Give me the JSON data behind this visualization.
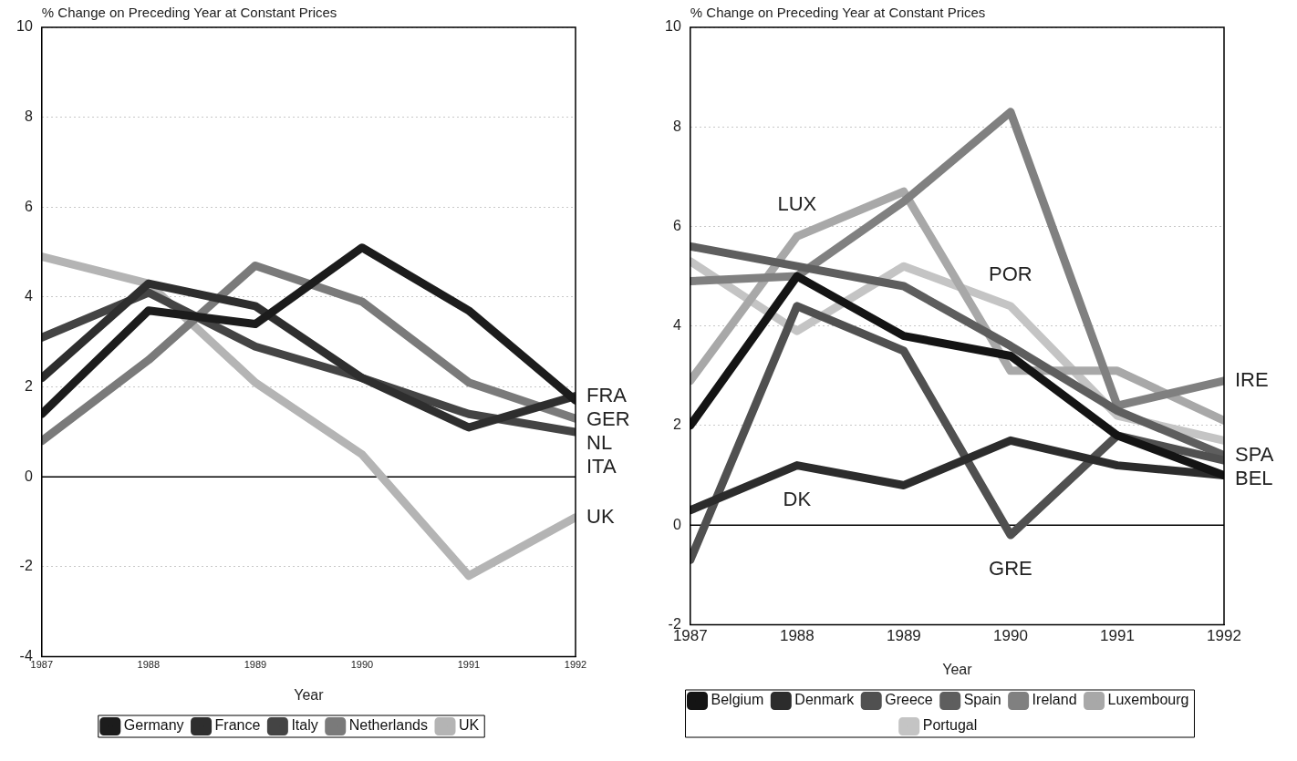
{
  "chart_data": [
    {
      "type": "line",
      "ylabel": "% Change on Preceding Year at Constant Prices",
      "xlabel": "Year",
      "x": [
        1987,
        1988,
        1989,
        1990,
        1991,
        1992
      ],
      "xlim": [
        1987,
        1992
      ],
      "xticks": [
        1987,
        1988,
        1989,
        1990,
        1991,
        1992
      ],
      "ylim": [
        -4,
        10
      ],
      "yticks": [
        -4,
        -2,
        0,
        2,
        4,
        6,
        8,
        10
      ],
      "grid": "y",
      "legend": "bottom",
      "marker": "none",
      "line_style": "solid",
      "ref_lines": [
        {
          "axis": "y",
          "value": 0,
          "color": "#000000"
        }
      ],
      "series": [
        {
          "name": "Germany",
          "color": "#1c1c1c",
          "values": [
            1.4,
            3.7,
            3.4,
            5.1,
            3.7,
            1.7
          ]
        },
        {
          "name": "France",
          "color": "#2e2e2e",
          "values": [
            2.2,
            4.3,
            3.8,
            2.2,
            1.1,
            1.8
          ]
        },
        {
          "name": "Italy",
          "color": "#444444",
          "values": [
            3.1,
            4.1,
            2.9,
            2.2,
            1.4,
            1.0
          ]
        },
        {
          "name": "Netherlands",
          "color": "#7a7a7a",
          "values": [
            0.8,
            2.6,
            4.7,
            3.9,
            2.1,
            1.3
          ]
        },
        {
          "name": "UK",
          "color": "#b4b4b4",
          "values": [
            4.9,
            4.3,
            2.1,
            0.5,
            -2.2,
            -0.9
          ]
        }
      ],
      "annotations": [
        {
          "text": "FRA",
          "x": 1992,
          "y": 1.8
        },
        {
          "text": "GER",
          "x": 1992,
          "y": 1.7
        },
        {
          "text": "NL",
          "x": 1992,
          "y": 1.3
        },
        {
          "text": "ITA",
          "x": 1992,
          "y": 1.0
        },
        {
          "text": "UK",
          "x": 1992,
          "y": -0.9
        }
      ]
    },
    {
      "type": "line",
      "ylabel": "% Change on Preceding Year at Constant Prices",
      "xlabel": "Year",
      "x": [
        1987,
        1988,
        1989,
        1990,
        1991,
        1992
      ],
      "xlim": [
        1987,
        1992
      ],
      "xticks": [
        1987,
        1988,
        1989,
        1990,
        1991,
        1992
      ],
      "ylim": [
        -2,
        10
      ],
      "yticks": [
        -2,
        0,
        2,
        4,
        6,
        8,
        10
      ],
      "grid": "y",
      "legend": "bottom",
      "marker": "none",
      "line_style": "solid",
      "ref_lines": [
        {
          "axis": "y",
          "value": 0,
          "color": "#000000"
        }
      ],
      "series": [
        {
          "name": "Belgium",
          "color": "#141414",
          "values": [
            2.0,
            5.0,
            3.8,
            3.4,
            1.8,
            1.0
          ]
        },
        {
          "name": "Denmark",
          "color": "#2c2c2c",
          "values": [
            0.3,
            1.2,
            0.8,
            1.7,
            1.2,
            1.0
          ]
        },
        {
          "name": "Greece",
          "color": "#505050",
          "values": [
            -0.7,
            4.4,
            3.5,
            -0.2,
            1.8,
            1.3
          ]
        },
        {
          "name": "Spain",
          "color": "#5e5e5e",
          "values": [
            5.6,
            5.2,
            4.8,
            3.6,
            2.3,
            1.4
          ]
        },
        {
          "name": "Ireland",
          "color": "#808080",
          "values": [
            4.9,
            5.0,
            6.5,
            8.3,
            2.4,
            2.9
          ]
        },
        {
          "name": "Luxembourg",
          "color": "#a8a8a8",
          "values": [
            2.9,
            5.8,
            6.7,
            3.1,
            3.1,
            2.1
          ]
        },
        {
          "name": "Portugal",
          "color": "#c4c4c4",
          "values": [
            5.3,
            3.9,
            5.2,
            4.4,
            2.2,
            1.7
          ]
        }
      ],
      "annotations": [
        {
          "text": "LUX",
          "x": 1988,
          "y": 5.8
        },
        {
          "text": "POR",
          "x": 1990,
          "y": 4.4
        },
        {
          "text": "DK",
          "x": 1988,
          "y": 1.2
        },
        {
          "text": "GRE",
          "x": 1990,
          "y": -0.2
        },
        {
          "text": "IRE",
          "x": 1992,
          "y": 2.9
        },
        {
          "text": "SPA",
          "x": 1992,
          "y": 1.4
        },
        {
          "text": "BEL",
          "x": 1992,
          "y": 1.0
        }
      ]
    }
  ]
}
